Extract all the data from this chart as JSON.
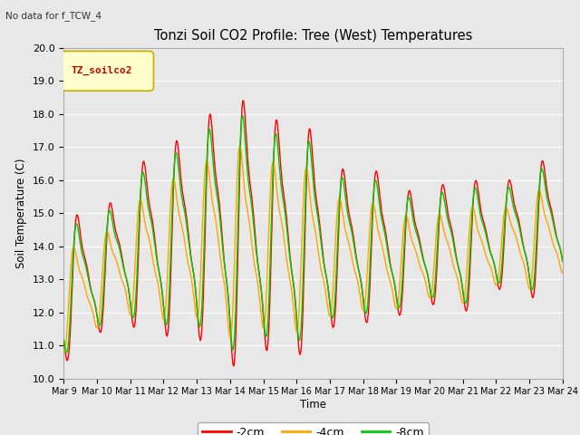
{
  "title": "Tonzi Soil CO2 Profile: Tree (West) Temperatures",
  "subtitle": "No data for f_TCW_4",
  "ylabel": "Soil Temperature (C)",
  "xlabel": "Time",
  "legend_label": "TZ_soilco2",
  "ylim": [
    10.0,
    20.0
  ],
  "yticks": [
    10.0,
    11.0,
    12.0,
    13.0,
    14.0,
    15.0,
    16.0,
    17.0,
    18.0,
    19.0,
    20.0
  ],
  "xtick_labels": [
    "Mar 9",
    "Mar 10",
    "Mar 11",
    "Mar 12",
    "Mar 13",
    "Mar 14",
    "Mar 15",
    "Mar 16",
    "Mar 17",
    "Mar 18",
    "Mar 19",
    "Mar 20",
    "Mar 21",
    "Mar 22",
    "Mar 23",
    "Mar 24"
  ],
  "bg_color": "#e8e8e8",
  "plot_bg_color": "#e8e8e8",
  "grid_color": "#ffffff",
  "line_colors": {
    "m2cm": "#ff0000",
    "m4cm": "#ffa500",
    "m8cm": "#00cc00"
  },
  "line_width": 1.0,
  "legend_box_color": "#ffffcc",
  "legend_box_edge": "#ccaa00",
  "series_legend": [
    {
      "label": "-2cm",
      "color": "#ff0000"
    },
    {
      "label": "-4cm",
      "color": "#ffa500"
    },
    {
      "label": "-8cm",
      "color": "#00cc00"
    }
  ]
}
